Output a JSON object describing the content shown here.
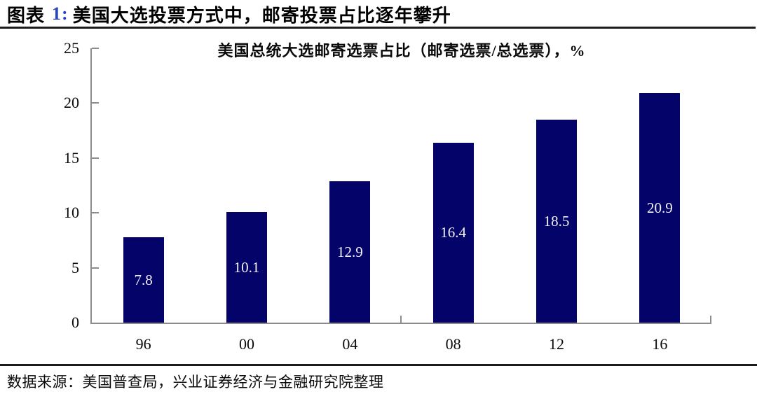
{
  "header": {
    "prefix": "图表",
    "number": "1:",
    "title": "美国大选投票方式中，邮寄投票占比逐年攀升",
    "number_color": "#2746c4"
  },
  "source": "数据来源：美国普查局，兴业证券经济与金融研究院整理",
  "chart_data": {
    "type": "bar",
    "title": "美国总统大选邮寄选票占比（邮寄选票/总选票），%",
    "categories": [
      "96",
      "00",
      "04",
      "08",
      "12",
      "16"
    ],
    "values": [
      7.8,
      10.1,
      12.9,
      16.4,
      18.5,
      20.9
    ],
    "data_labels": [
      "7.8",
      "10.1",
      "12.9",
      "16.4",
      "18.5",
      "20.9"
    ],
    "xlabel": "",
    "ylabel": "",
    "ylim": [
      0,
      25
    ],
    "yticks": [
      0,
      5,
      10,
      15,
      20,
      25
    ],
    "grid": false,
    "legend": "none",
    "data_label_position": "inside-center",
    "bar_color": "#03036a",
    "data_label_color": "#f2f2f6",
    "axis_color": "#8c8c8c"
  }
}
